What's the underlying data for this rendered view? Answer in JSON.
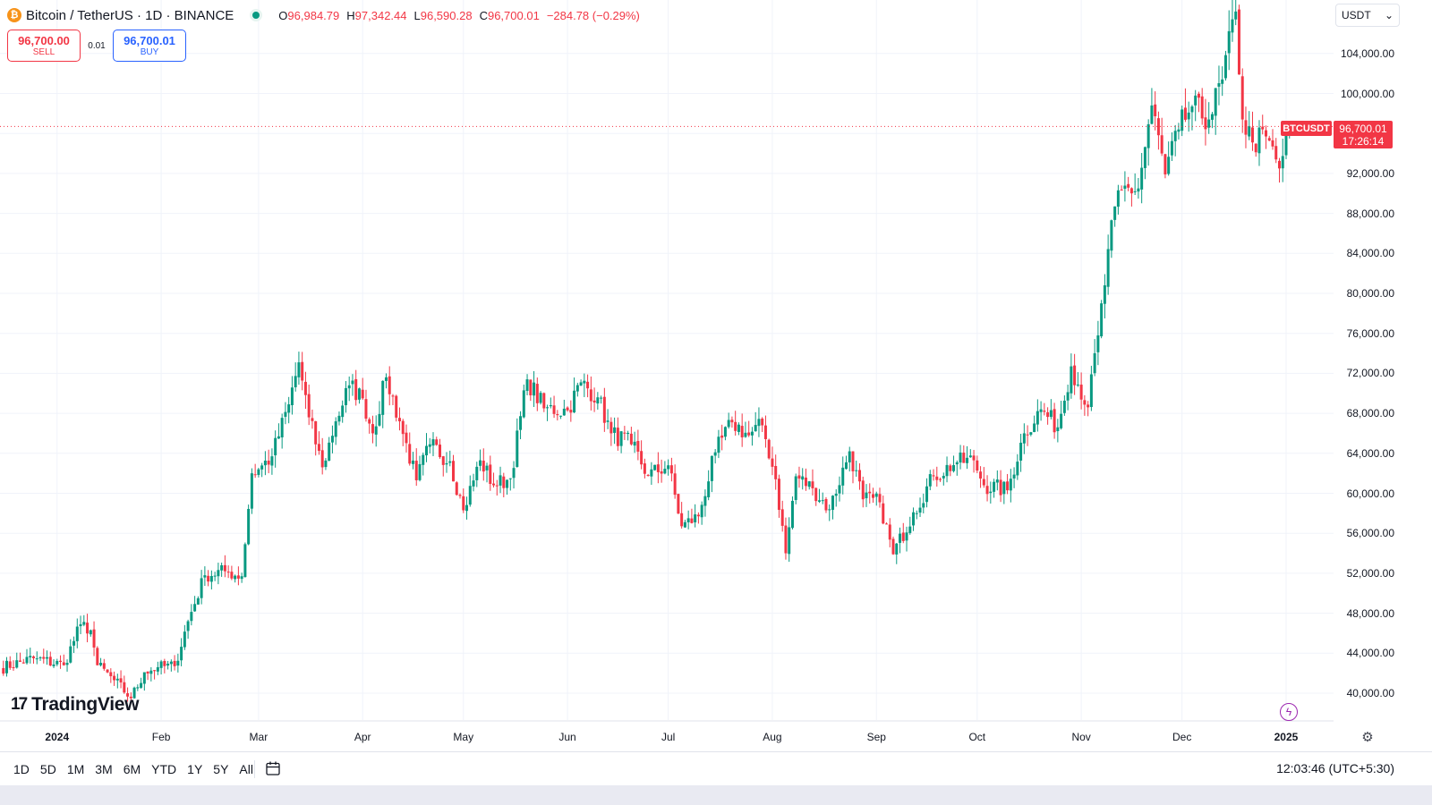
{
  "header": {
    "coin_glyph": "₿",
    "symbol_title": "Bitcoin / TetherUS · 1D · BINANCE",
    "ohlc": {
      "o_label": "O",
      "o": "96,984.79",
      "h_label": "H",
      "h": "97,342.44",
      "l_label": "L",
      "l": "96,590.28",
      "c_label": "C",
      "c": "96,700.01",
      "change": "−284.78 (−0.29%)"
    },
    "status_color": "#089981"
  },
  "trade": {
    "sell_price": "96,700.00",
    "sell_label": "SELL",
    "spread": "0.01",
    "buy_price": "96,700.01",
    "buy_label": "BUY"
  },
  "currency_selector": {
    "value": "USDT",
    "chevron": "⌄"
  },
  "logo": {
    "mark": "17",
    "name": "TradingView"
  },
  "price_marker": {
    "symbol": "BTCUSDT",
    "price": "96,700.01",
    "countdown": "17:26:14",
    "color": "#f23645"
  },
  "bottom_bar": {
    "ranges": [
      "1D",
      "5D",
      "1M",
      "3M",
      "6M",
      "YTD",
      "1Y",
      "5Y",
      "All"
    ],
    "clock": "12:03:46 (UTC+5:30)"
  },
  "icons": {
    "flash": "ϟ",
    "settings": "⚙"
  },
  "colors": {
    "up": "#089981",
    "down": "#f23645"
  },
  "chart_data": {
    "type": "candlestick",
    "title": "Bitcoin / TetherUS · 1D · BINANCE",
    "ylim": [
      36600,
      111000
    ],
    "y_ticks": [
      40000,
      44000,
      48000,
      52000,
      56000,
      60000,
      64000,
      68000,
      72000,
      76000,
      80000,
      84000,
      88000,
      92000,
      96000,
      100000,
      104000
    ],
    "y_tick_labels": [
      "40,000.00",
      "44,000.00",
      "48,000.00",
      "52,000.00",
      "56,000.00",
      "60,000.00",
      "64,000.00",
      "68,000.00",
      "72,000.00",
      "76,000.00",
      "80,000.00",
      "84,000.00",
      "88,000.00",
      "92,000.00",
      "",
      "100,000.00",
      "104,000.00"
    ],
    "x_ticks": [
      {
        "label": "2024",
        "date": "2024-01-01",
        "bold": true
      },
      {
        "label": "Feb",
        "date": "2024-02-01"
      },
      {
        "label": "Mar",
        "date": "2024-03-01"
      },
      {
        "label": "Apr",
        "date": "2024-04-01"
      },
      {
        "label": "May",
        "date": "2024-05-01"
      },
      {
        "label": "Jun",
        "date": "2024-06-01"
      },
      {
        "label": "Jul",
        "date": "2024-07-01"
      },
      {
        "label": "Aug",
        "date": "2024-08-01"
      },
      {
        "label": "Sep",
        "date": "2024-09-01"
      },
      {
        "label": "Oct",
        "date": "2024-10-01"
      },
      {
        "label": "Nov",
        "date": "2024-11-01"
      },
      {
        "label": "Dec",
        "date": "2024-12-01"
      },
      {
        "label": "2025",
        "date": "2025-01-01",
        "bold": true
      }
    ],
    "x_range": [
      "2023-12-15",
      "2025-01-05"
    ],
    "last_date": "2025-01-02",
    "last_price": 96700.01,
    "series_close": [
      [
        "2023-12-15",
        42500
      ],
      [
        "2023-12-25",
        43500
      ],
      [
        "2024-01-03",
        42800
      ],
      [
        "2024-01-08",
        46900
      ],
      [
        "2024-01-11",
        46300
      ],
      [
        "2024-01-13",
        42800
      ],
      [
        "2024-01-18",
        41300
      ],
      [
        "2024-01-23",
        39500
      ],
      [
        "2024-01-27",
        42100
      ],
      [
        "2024-01-31",
        42600
      ],
      [
        "2024-02-05",
        42700
      ],
      [
        "2024-02-09",
        47200
      ],
      [
        "2024-02-14",
        51800
      ],
      [
        "2024-02-20",
        52200
      ],
      [
        "2024-02-25",
        51700
      ],
      [
        "2024-02-28",
        62000
      ],
      [
        "2024-03-01",
        62400
      ],
      [
        "2024-03-05",
        63700
      ],
      [
        "2024-03-10",
        68900
      ],
      [
        "2024-03-13",
        73100
      ],
      [
        "2024-03-16",
        67600
      ],
      [
        "2024-03-20",
        62600
      ],
      [
        "2024-03-24",
        67200
      ],
      [
        "2024-03-28",
        70800
      ],
      [
        "2024-04-01",
        69500
      ],
      [
        "2024-04-04",
        66000
      ],
      [
        "2024-04-08",
        71600
      ],
      [
        "2024-04-12",
        67200
      ],
      [
        "2024-04-17",
        61300
      ],
      [
        "2024-04-21",
        64900
      ],
      [
        "2024-04-27",
        63200
      ],
      [
        "2024-05-01",
        58300
      ],
      [
        "2024-05-06",
        63300
      ],
      [
        "2024-05-10",
        60800
      ],
      [
        "2024-05-15",
        61500
      ],
      [
        "2024-05-20",
        71400
      ],
      [
        "2024-05-25",
        68500
      ],
      [
        "2024-06-01",
        68300
      ],
      [
        "2024-06-05",
        71100
      ],
      [
        "2024-06-10",
        69600
      ],
      [
        "2024-06-14",
        66000
      ],
      [
        "2024-06-20",
        64900
      ],
      [
        "2024-06-25",
        61800
      ],
      [
        "2024-07-01",
        62800
      ],
      [
        "2024-07-05",
        56700
      ],
      [
        "2024-07-10",
        57700
      ],
      [
        "2024-07-15",
        64100
      ],
      [
        "2024-07-20",
        67100
      ],
      [
        "2024-07-25",
        65800
      ],
      [
        "2024-07-29",
        66800
      ],
      [
        "2024-08-02",
        61400
      ],
      [
        "2024-08-05",
        54000
      ],
      [
        "2024-08-08",
        61700
      ],
      [
        "2024-08-13",
        60500
      ],
      [
        "2024-08-18",
        58400
      ],
      [
        "2024-08-24",
        64200
      ],
      [
        "2024-08-28",
        59400
      ],
      [
        "2024-09-02",
        59100
      ],
      [
        "2024-09-06",
        53900
      ],
      [
        "2024-09-12",
        58100
      ],
      [
        "2024-09-18",
        61700
      ],
      [
        "2024-09-25",
        63100
      ],
      [
        "2024-09-30",
        63300
      ],
      [
        "2024-10-03",
        60800
      ],
      [
        "2024-10-10",
        60300
      ],
      [
        "2024-10-15",
        66000
      ],
      [
        "2024-10-20",
        68400
      ],
      [
        "2024-10-25",
        66600
      ],
      [
        "2024-10-29",
        72700
      ],
      [
        "2024-11-03",
        68600
      ],
      [
        "2024-11-06",
        75800
      ],
      [
        "2024-11-11",
        88700
      ],
      [
        "2024-11-13",
        90300
      ],
      [
        "2024-11-18",
        90500
      ],
      [
        "2024-11-22",
        98800
      ],
      [
        "2024-11-26",
        91900
      ],
      [
        "2024-11-30",
        96400
      ],
      [
        "2024-12-04",
        98700
      ],
      [
        "2024-12-09",
        97400
      ],
      [
        "2024-12-13",
        101400
      ],
      [
        "2024-12-17",
        108200
      ],
      [
        "2024-12-19",
        97400
      ],
      [
        "2024-12-22",
        95100
      ],
      [
        "2024-12-26",
        95700
      ],
      [
        "2024-12-30",
        92500
      ],
      [
        "2025-01-02",
        96700
      ]
    ]
  }
}
